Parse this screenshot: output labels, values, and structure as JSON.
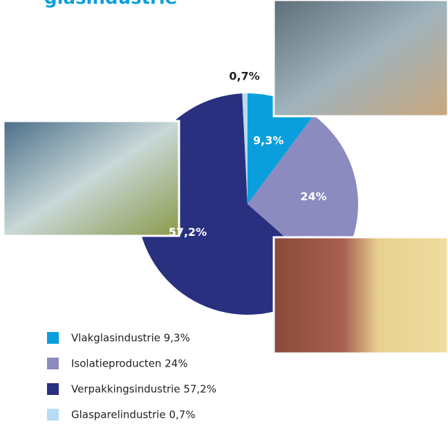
{
  "chart_data": {
    "type": "pie",
    "title": "glasindustrie",
    "categories": [
      "Vlakglasindustrie 9,3%",
      "Isolatieproducten 24%",
      "Verpakkingsindustrie 57,2%",
      "Glasparelindustrie 0,7%"
    ],
    "values": [
      9.3,
      24,
      57.2,
      0.7
    ],
    "value_labels": [
      "9,3%",
      "24%",
      "57,2%",
      "0,7%"
    ],
    "colors": [
      "#0a9fdc",
      "#8b8bbf",
      "#28307f",
      "#b6dcf1"
    ]
  }
}
